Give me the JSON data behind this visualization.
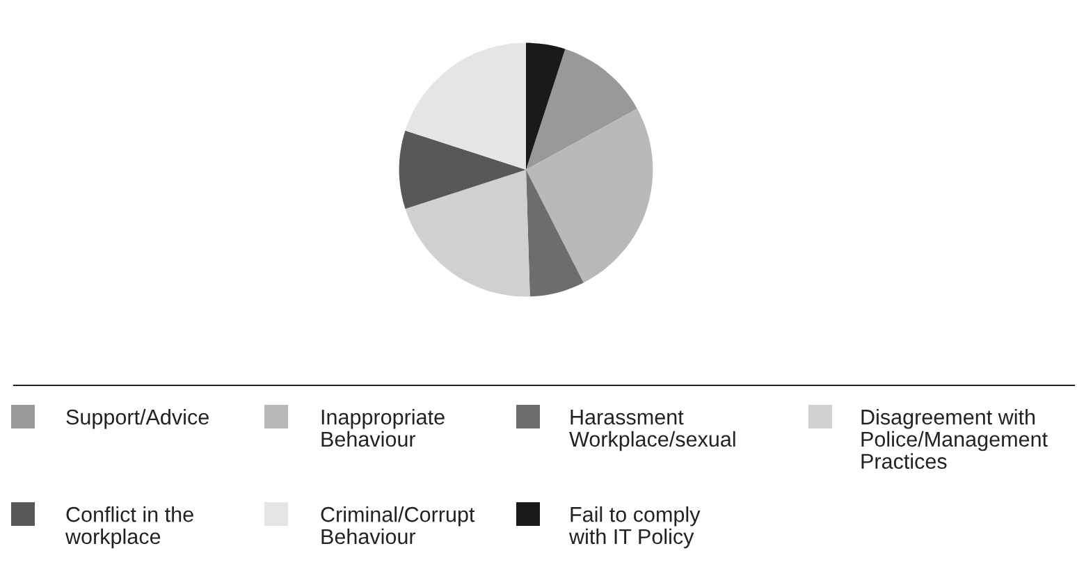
{
  "chart_data": {
    "type": "pie",
    "categories": [
      "Support/Advice",
      "Inappropriate\nBehaviour",
      "Harassment\nWorkplace/sexual",
      "Disagreement with\nPolice/Management\nPractices",
      "Conflict in the\nworkplace",
      "Criminal/Corrupt\nBehaviour",
      "Fail to comply\nwith IT Policy"
    ],
    "values": [
      12,
      25.5,
      7,
      20.5,
      10,
      20,
      5
    ],
    "colors": [
      "#999999",
      "#b9b9bb",
      "#6d6d6f",
      "#d0d0d1",
      "#58585a",
      "#e5e5e6",
      "#1a1a1a"
    ],
    "legend": "bottom"
  }
}
